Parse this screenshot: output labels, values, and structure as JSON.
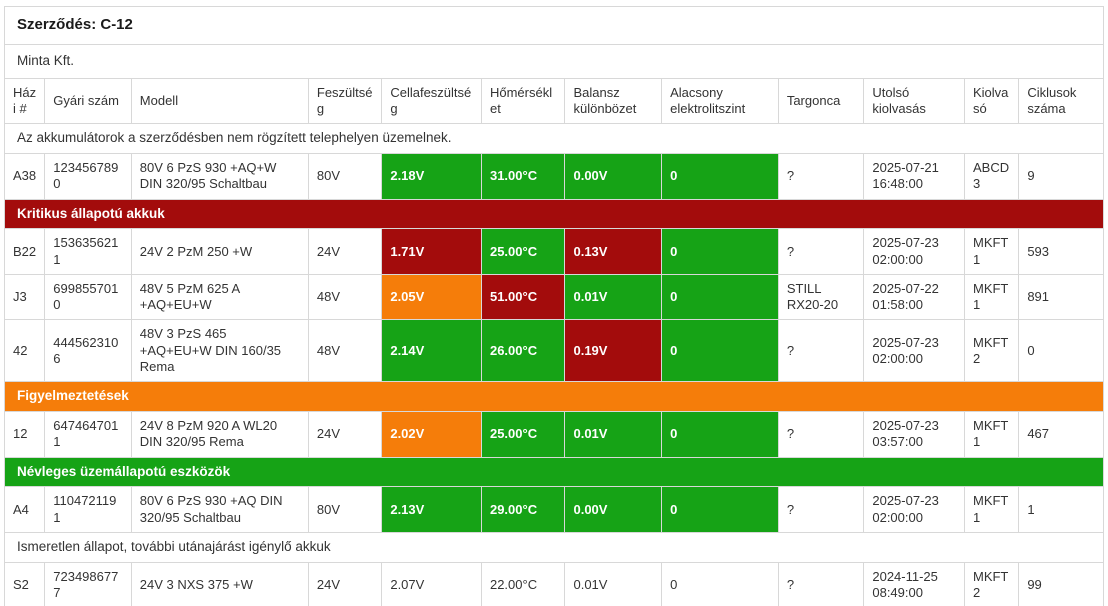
{
  "colors": {
    "ok": "#16a316",
    "critical": "#a30c0c",
    "warning": "#f57d0a"
  },
  "page": {
    "title": "Szerződés: C-12",
    "subtitle": "Minta Kft."
  },
  "table": {
    "columns": [
      "Házi #",
      "Gyári szám",
      "Modell",
      "Feszültség",
      "Cellafeszültség",
      "Hőmérséklet",
      "Balansz különbözet",
      "Alacsony elektrolitszint",
      "Targonca",
      "Utolsó kiolvasás",
      "Kiolvasó",
      "Ciklusok száma"
    ],
    "sections": [
      {
        "label": "Az akkumulátorok a szerződésben nem rögzített telephelyen üzemelnek.",
        "style": "plain",
        "rows": [
          {
            "house_id": "A38",
            "serial": "1234567890",
            "model": "80V 6 PzS 930 +AQ+W DIN 320/95 Schaltbau",
            "voltage": "80V",
            "cell_voltage": {
              "text": "2.18V",
              "status": "ok"
            },
            "temperature": {
              "text": "31.00°C",
              "status": "ok"
            },
            "balance": {
              "text": "0.00V",
              "status": "ok"
            },
            "electrolyte": {
              "text": "0",
              "status": "ok"
            },
            "forklift": "?",
            "last_read": "2025-07-21 16:48:00",
            "reader": "ABCD3",
            "cycles": "9"
          }
        ]
      },
      {
        "label": "Kritikus állapotú akkuk",
        "style": "critical",
        "rows": [
          {
            "house_id": "B22",
            "serial": "1536356211",
            "model": "24V 2 PzM 250 +W",
            "voltage": "24V",
            "cell_voltage": {
              "text": "1.71V",
              "status": "critical"
            },
            "temperature": {
              "text": "25.00°C",
              "status": "ok"
            },
            "balance": {
              "text": "0.13V",
              "status": "critical"
            },
            "electrolyte": {
              "text": "0",
              "status": "ok"
            },
            "forklift": "?",
            "last_read": "2025-07-23 02:00:00",
            "reader": "MKFT1",
            "cycles": "593"
          },
          {
            "house_id": "J3",
            "serial": "6998557010",
            "model": "48V 5 PzM 625 A +AQ+EU+W",
            "voltage": "48V",
            "cell_voltage": {
              "text": "2.05V",
              "status": "warning"
            },
            "temperature": {
              "text": "51.00°C",
              "status": "critical"
            },
            "balance": {
              "text": "0.01V",
              "status": "ok"
            },
            "electrolyte": {
              "text": "0",
              "status": "ok"
            },
            "forklift": "STILL RX20-20",
            "last_read": "2025-07-22 01:58:00",
            "reader": "MKFT1",
            "cycles": "891"
          },
          {
            "house_id": "42",
            "serial": "4445623106",
            "model": "48V 3 PzS 465 +AQ+EU+W DIN 160/35 Rema",
            "voltage": "48V",
            "cell_voltage": {
              "text": "2.14V",
              "status": "ok"
            },
            "temperature": {
              "text": "26.00°C",
              "status": "ok"
            },
            "balance": {
              "text": "0.19V",
              "status": "critical"
            },
            "electrolyte": {
              "text": "0",
              "status": "ok"
            },
            "forklift": "?",
            "last_read": "2025-07-23 02:00:00",
            "reader": "MKFT2",
            "cycles": "0"
          }
        ]
      },
      {
        "label": "Figyelmeztetések",
        "style": "warning",
        "rows": [
          {
            "house_id": "12",
            "serial": "6474647011",
            "model": "24V 8 PzM 920 A WL20 DIN 320/95 Rema",
            "voltage": "24V",
            "cell_voltage": {
              "text": "2.02V",
              "status": "warning"
            },
            "temperature": {
              "text": "25.00°C",
              "status": "ok"
            },
            "balance": {
              "text": "0.01V",
              "status": "ok"
            },
            "electrolyte": {
              "text": "0",
              "status": "ok"
            },
            "forklift": "?",
            "last_read": "2025-07-23 03:57:00",
            "reader": "MKFT1",
            "cycles": "467"
          }
        ]
      },
      {
        "label": "Névleges üzemállapotú eszközök",
        "style": "ok",
        "rows": [
          {
            "house_id": "A4",
            "serial": "1104721191",
            "model": "80V 6 PzS 930 +AQ DIN 320/95 Schaltbau",
            "voltage": "80V",
            "cell_voltage": {
              "text": "2.13V",
              "status": "ok"
            },
            "temperature": {
              "text": "29.00°C",
              "status": "ok"
            },
            "balance": {
              "text": "0.00V",
              "status": "ok"
            },
            "electrolyte": {
              "text": "0",
              "status": "ok"
            },
            "forklift": "?",
            "last_read": "2025-07-23 02:00:00",
            "reader": "MKFT1",
            "cycles": "1"
          }
        ]
      },
      {
        "label": "Ismeretlen állapot, további utánajárást igénylő akkuk",
        "style": "plain",
        "rows": [
          {
            "house_id": "S2",
            "serial": "7234986777",
            "model": "24V 3 NXS 375 +W",
            "voltage": "24V",
            "cell_voltage": {
              "text": "2.07V",
              "status": "none"
            },
            "temperature": {
              "text": "22.00°C",
              "status": "none"
            },
            "balance": {
              "text": "0.01V",
              "status": "none"
            },
            "electrolyte": {
              "text": "0",
              "status": "none"
            },
            "forklift": "?",
            "last_read": "2024-11-25 08:49:00",
            "reader": "MKFT2",
            "cycles": "99"
          },
          {
            "partial": true,
            "house_id": "",
            "serial": "",
            "model": "",
            "voltage": "",
            "cell_voltage": {
              "text": "",
              "status": "ok"
            },
            "temperature": {
              "text": "",
              "status": "ok"
            },
            "balance": {
              "text": "",
              "status": "ok"
            },
            "electrolyte": {
              "text": "",
              "status": "ok"
            },
            "forklift": "",
            "last_read": "",
            "reader": "",
            "cycles": ""
          }
        ]
      }
    ]
  }
}
